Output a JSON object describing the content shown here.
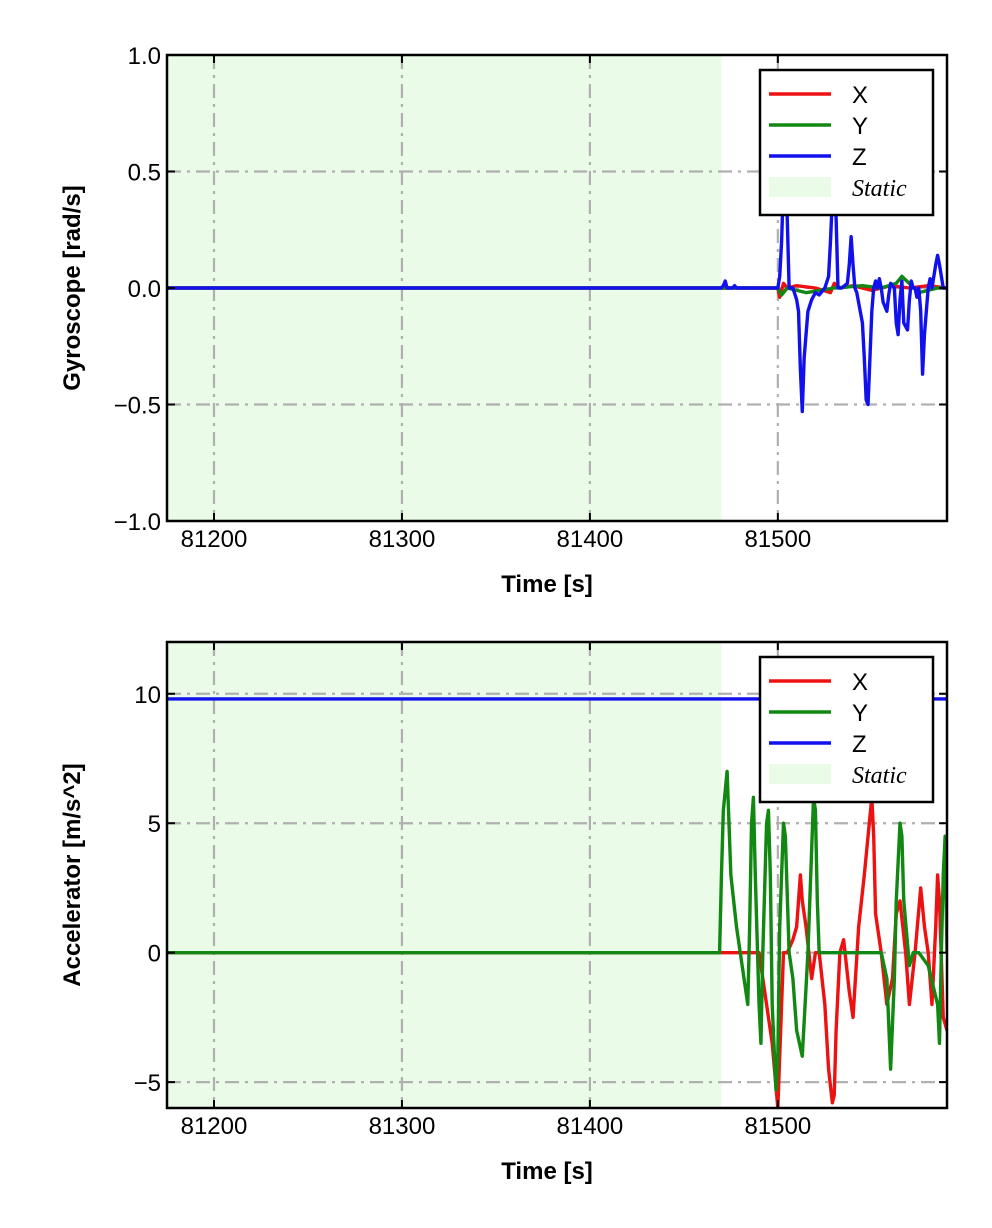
{
  "chart_data": [
    {
      "type": "line",
      "title": "",
      "xlabel": "Time [s]",
      "ylabel": "Gyroscope [rad/s]",
      "xlim": [
        81175,
        81590
      ],
      "ylim": [
        -1.0,
        1.0
      ],
      "xticks": [
        81200,
        81300,
        81400,
        81500
      ],
      "xtick_labels": [
        "81200",
        "81300",
        "81400",
        "81500"
      ],
      "yticks": [
        -1.0,
        -0.5,
        0.0,
        0.5,
        1.0
      ],
      "ytick_labels": [
        "−1.0",
        "−0.5",
        "0.0",
        "0.5",
        "1.0"
      ],
      "grid": true,
      "legend_position": "top-right",
      "static_region": {
        "x": [
          81175,
          81470
        ],
        "label": "Static",
        "color": "#eafbe8"
      },
      "series": [
        {
          "name": "X",
          "color": "#ee1111",
          "x": [
            81175,
            81470,
            81500,
            81501,
            81503,
            81505,
            81510,
            81520,
            81528,
            81530,
            81533,
            81540,
            81550,
            81560,
            81570,
            81580,
            81590
          ],
          "y": [
            0.0,
            0.0,
            0.0,
            -0.04,
            0.02,
            0.0,
            0.01,
            0.0,
            -0.02,
            0.02,
            0.0,
            0.01,
            -0.01,
            0.01,
            0.0,
            0.01,
            0.0
          ]
        },
        {
          "name": "Y",
          "color": "#118811",
          "x": [
            81175,
            81470,
            81500,
            81502,
            81505,
            81515,
            81530,
            81545,
            81555,
            81563,
            81566,
            81575,
            81585,
            81590
          ],
          "y": [
            0.0,
            0.0,
            0.0,
            -0.03,
            0.0,
            -0.02,
            0.0,
            0.01,
            0.0,
            0.02,
            0.05,
            -0.02,
            0.0,
            0.0
          ]
        },
        {
          "name": "Z",
          "color": "#1111ee",
          "x": [
            81175,
            81470,
            81471,
            81472,
            81473,
            81476,
            81477,
            81478,
            81500,
            81501,
            81502,
            81503,
            81504,
            81505,
            81506,
            81508,
            81510,
            81511,
            81512,
            81513,
            81514,
            81516,
            81518,
            81520,
            81522,
            81525,
            81527,
            81528,
            81529,
            81530,
            81531,
            81532,
            81534,
            81537,
            81538,
            81539,
            81540,
            81541,
            81542,
            81545,
            81546,
            81547,
            81548,
            81549,
            81550,
            81551,
            81552,
            81553,
            81554,
            81555,
            81556,
            81558,
            81559,
            81560,
            81562,
            81563,
            81564,
            81565,
            81566,
            81567,
            81569,
            81570,
            81571,
            81572,
            81573,
            81574,
            81575,
            81576,
            81577,
            81578,
            81580,
            81581,
            81582,
            81584,
            81585,
            81586,
            81588,
            81590
          ],
          "y": [
            0.0,
            0.0,
            0.01,
            0.03,
            0.0,
            0.0,
            0.01,
            0.0,
            0.0,
            0.05,
            0.2,
            0.45,
            0.5,
            0.3,
            0.0,
            0.0,
            -0.05,
            -0.1,
            -0.35,
            -0.53,
            -0.3,
            -0.1,
            -0.05,
            -0.02,
            -0.03,
            0.0,
            0.05,
            0.2,
            0.38,
            0.45,
            0.3,
            0.0,
            0.0,
            0.02,
            0.1,
            0.22,
            0.1,
            0.0,
            -0.02,
            -0.15,
            -0.3,
            -0.48,
            -0.5,
            -0.3,
            -0.1,
            0.0,
            0.03,
            0.0,
            0.04,
            0.0,
            -0.06,
            -0.1,
            -0.03,
            0.02,
            0.0,
            -0.15,
            -0.2,
            -0.05,
            0.03,
            -0.15,
            -0.18,
            -0.05,
            0.03,
            0.0,
            0.0,
            -0.04,
            0.0,
            -0.1,
            -0.37,
            -0.2,
            0.0,
            0.04,
            0.0,
            0.1,
            0.14,
            0.1,
            0.0,
            0.0
          ]
        }
      ],
      "legend": [
        {
          "label": "X",
          "color": "#ee1111",
          "kind": "line"
        },
        {
          "label": "Y",
          "color": "#118811",
          "kind": "line"
        },
        {
          "label": "Z",
          "color": "#1111ee",
          "kind": "line"
        },
        {
          "label": "Static",
          "color": "#eafbe8",
          "kind": "patch"
        }
      ]
    },
    {
      "type": "line",
      "title": "",
      "xlabel": "Time [s]",
      "ylabel": "Accelerator [m/s^2]",
      "xlim": [
        81175,
        81590
      ],
      "ylim": [
        -6,
        12
      ],
      "xticks": [
        81200,
        81300,
        81400,
        81500
      ],
      "xtick_labels": [
        "81200",
        "81300",
        "81400",
        "81500"
      ],
      "yticks": [
        -5,
        0,
        5,
        10
      ],
      "ytick_labels": [
        "−5",
        "0",
        "5",
        "10"
      ],
      "grid": true,
      "legend_position": "top-right",
      "static_region": {
        "x": [
          81175,
          81470
        ],
        "label": "Static",
        "color": "#eafbe8"
      },
      "series": [
        {
          "name": "X",
          "color": "#ee1111",
          "x": [
            81175,
            81470,
            81490,
            81495,
            81497,
            81500,
            81501,
            81503,
            81505,
            81508,
            81510,
            81512,
            81513,
            81515,
            81518,
            81520,
            81522,
            81525,
            81527,
            81529,
            81530,
            81531,
            81533,
            81535,
            81538,
            81540,
            81543,
            81546,
            81548,
            81550,
            81551,
            81552,
            81555,
            81558,
            81561,
            81563,
            81565,
            81568,
            81570,
            81573,
            81576,
            81578,
            81580,
            81582,
            81584,
            81585,
            81586,
            81588,
            81590
          ],
          "y": [
            0.0,
            0.0,
            0.0,
            -2.5,
            -3.5,
            -6.0,
            -4.0,
            0.0,
            0.0,
            0.5,
            1.0,
            3.0,
            2.0,
            1.0,
            -1.0,
            0.0,
            0.0,
            -2.0,
            -4.5,
            -5.8,
            -5.5,
            -3.0,
            0.0,
            0.5,
            -1.5,
            -2.5,
            1.0,
            3.0,
            4.5,
            6.0,
            4.5,
            1.5,
            0.0,
            -2.0,
            -1.0,
            1.5,
            2.0,
            0.0,
            -2.0,
            0.0,
            2.5,
            1.0,
            0.0,
            -2.0,
            1.0,
            3.0,
            2.0,
            -2.5,
            -3.0
          ]
        },
        {
          "name": "Y",
          "color": "#118811",
          "x": [
            81175,
            81469,
            81470,
            81471,
            81473,
            81475,
            81478,
            81480,
            81482,
            81484,
            81485,
            81486,
            81487,
            81488,
            81490,
            81491,
            81492,
            81494,
            81495,
            81496,
            81497,
            81499,
            81500,
            81501,
            81503,
            81504,
            81506,
            81508,
            81510,
            81513,
            81516,
            81519,
            81520,
            81521,
            81522,
            81525,
            81530,
            81540,
            81550,
            81555,
            81558,
            81560,
            81562,
            81563,
            81565,
            81566,
            81567,
            81570,
            81572,
            81575,
            81580,
            81585,
            81586,
            81587,
            81588,
            81589,
            81590
          ],
          "y": [
            0.0,
            0.0,
            3.0,
            5.5,
            7.0,
            3.0,
            1.0,
            0.0,
            -1.0,
            -2.0,
            1.0,
            5.0,
            6.0,
            3.0,
            -2.0,
            -3.5,
            0.0,
            5.0,
            5.5,
            3.0,
            -2.0,
            -5.3,
            -4.0,
            1.0,
            5.0,
            4.5,
            0.0,
            -1.0,
            -3.0,
            -4.0,
            0.0,
            6.0,
            5.5,
            2.0,
            0.0,
            0.0,
            0.0,
            0.0,
            0.0,
            0.0,
            -1.0,
            -4.5,
            -1.0,
            2.0,
            5.0,
            4.5,
            2.0,
            -0.5,
            0.0,
            0.0,
            -0.5,
            -2.0,
            -3.5,
            0.0,
            3.0,
            4.5,
            0.0
          ]
        },
        {
          "name": "Z",
          "color": "#1111ee",
          "x": [
            81175,
            81590
          ],
          "y": [
            9.8,
            9.8
          ]
        }
      ],
      "legend": [
        {
          "label": "X",
          "color": "#ee1111",
          "kind": "line"
        },
        {
          "label": "Y",
          "color": "#118811",
          "kind": "line"
        },
        {
          "label": "Z",
          "color": "#1111ee",
          "kind": "line"
        },
        {
          "label": "Static",
          "color": "#eafbe8",
          "kind": "patch"
        }
      ]
    }
  ]
}
